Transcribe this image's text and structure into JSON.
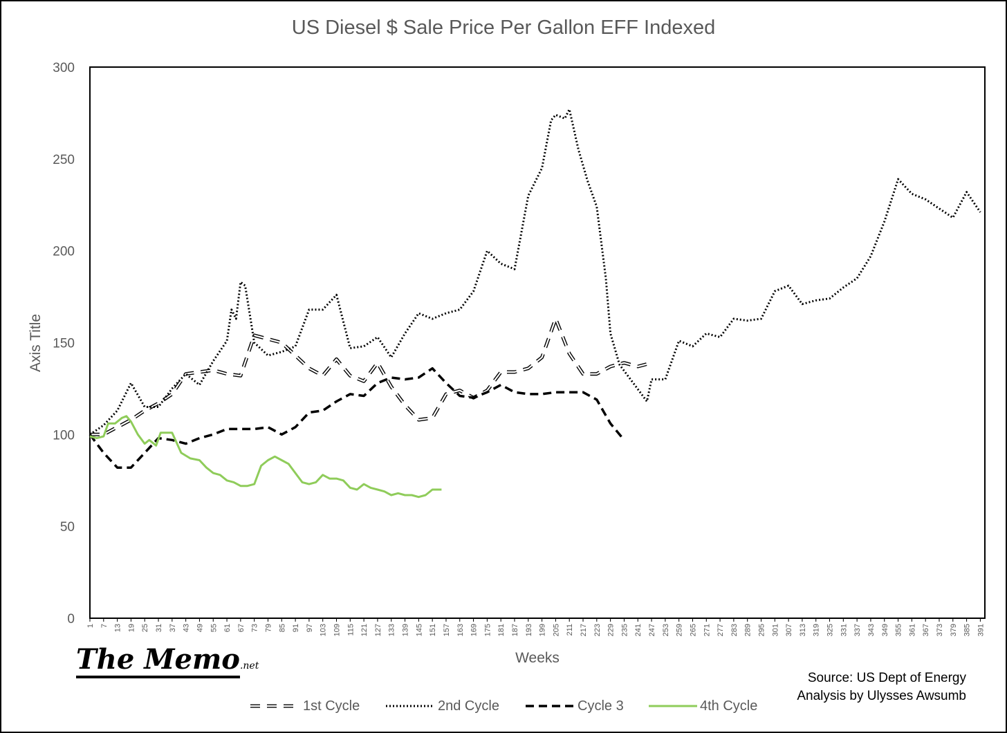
{
  "chart_data": {
    "type": "line",
    "title": "US Diesel $ Sale Price Per Gallon EFF Indexed",
    "xlabel": "Weeks",
    "ylabel": "Axis Title",
    "ylim": [
      0,
      300
    ],
    "yticks": [
      0,
      50,
      100,
      150,
      200,
      250,
      300
    ],
    "xlim": [
      1,
      393
    ],
    "xtick_start": 1,
    "xtick_step": 6,
    "xtick_end": 391,
    "legend_position": "bottom",
    "grid": false,
    "series": [
      {
        "name": "1st Cycle",
        "style": "long-dash-outline",
        "color": "#000000",
        "points": [
          [
            1,
            100
          ],
          [
            7,
            100
          ],
          [
            13,
            104
          ],
          [
            19,
            108
          ],
          [
            25,
            113
          ],
          [
            31,
            117
          ],
          [
            37,
            122
          ],
          [
            43,
            133
          ],
          [
            49,
            134
          ],
          [
            55,
            135
          ],
          [
            61,
            133
          ],
          [
            67,
            132
          ],
          [
            73,
            154
          ],
          [
            79,
            152
          ],
          [
            85,
            150
          ],
          [
            91,
            143
          ],
          [
            97,
            136
          ],
          [
            103,
            132
          ],
          [
            109,
            141
          ],
          [
            115,
            132
          ],
          [
            121,
            129
          ],
          [
            127,
            139
          ],
          [
            133,
            126
          ],
          [
            139,
            116
          ],
          [
            145,
            108
          ],
          [
            151,
            109
          ],
          [
            157,
            122
          ],
          [
            163,
            124
          ],
          [
            169,
            120
          ],
          [
            175,
            124
          ],
          [
            181,
            134
          ],
          [
            187,
            134
          ],
          [
            193,
            136
          ],
          [
            199,
            142
          ],
          [
            205,
            163
          ],
          [
            211,
            144
          ],
          [
            217,
            133
          ],
          [
            223,
            133
          ],
          [
            229,
            137
          ],
          [
            235,
            139
          ],
          [
            241,
            137
          ],
          [
            247,
            139
          ]
        ]
      },
      {
        "name": "2nd Cycle",
        "style": "dotted",
        "color": "#000000",
        "points": [
          [
            1,
            100
          ],
          [
            7,
            105
          ],
          [
            13,
            113
          ],
          [
            19,
            128
          ],
          [
            25,
            115
          ],
          [
            31,
            115
          ],
          [
            37,
            125
          ],
          [
            43,
            133
          ],
          [
            49,
            127
          ],
          [
            55,
            140
          ],
          [
            61,
            151
          ],
          [
            63,
            168
          ],
          [
            65,
            163
          ],
          [
            67,
            183
          ],
          [
            69,
            181
          ],
          [
            73,
            150
          ],
          [
            79,
            143
          ],
          [
            85,
            145
          ],
          [
            91,
            148
          ],
          [
            97,
            168
          ],
          [
            103,
            168
          ],
          [
            109,
            176
          ],
          [
            115,
            147
          ],
          [
            121,
            148
          ],
          [
            127,
            153
          ],
          [
            133,
            142
          ],
          [
            139,
            155
          ],
          [
            145,
            166
          ],
          [
            151,
            163
          ],
          [
            157,
            166
          ],
          [
            163,
            168
          ],
          [
            169,
            178
          ],
          [
            175,
            200
          ],
          [
            181,
            193
          ],
          [
            187,
            190
          ],
          [
            193,
            230
          ],
          [
            199,
            245
          ],
          [
            203,
            271
          ],
          [
            205,
            274
          ],
          [
            209,
            272
          ],
          [
            211,
            277
          ],
          [
            215,
            255
          ],
          [
            219,
            238
          ],
          [
            223,
            224
          ],
          [
            227,
            185
          ],
          [
            229,
            155
          ],
          [
            233,
            138
          ],
          [
            239,
            128
          ],
          [
            245,
            118
          ],
          [
            247,
            130
          ],
          [
            253,
            130
          ],
          [
            259,
            151
          ],
          [
            265,
            148
          ],
          [
            271,
            155
          ],
          [
            277,
            153
          ],
          [
            283,
            163
          ],
          [
            289,
            162
          ],
          [
            295,
            163
          ],
          [
            301,
            178
          ],
          [
            307,
            181
          ],
          [
            313,
            171
          ],
          [
            319,
            173
          ],
          [
            325,
            174
          ],
          [
            331,
            180
          ],
          [
            337,
            185
          ],
          [
            343,
            197
          ],
          [
            349,
            216
          ],
          [
            355,
            239
          ],
          [
            361,
            231
          ],
          [
            367,
            228
          ],
          [
            373,
            223
          ],
          [
            379,
            218
          ],
          [
            385,
            232
          ],
          [
            391,
            221
          ]
        ]
      },
      {
        "name": "Cycle 3",
        "style": "dashed",
        "color": "#000000",
        "points": [
          [
            1,
            100
          ],
          [
            7,
            90
          ],
          [
            13,
            82
          ],
          [
            19,
            82
          ],
          [
            25,
            90
          ],
          [
            31,
            98
          ],
          [
            37,
            97
          ],
          [
            43,
            95
          ],
          [
            49,
            98
          ],
          [
            55,
            100
          ],
          [
            61,
            103
          ],
          [
            67,
            103
          ],
          [
            73,
            103
          ],
          [
            79,
            104
          ],
          [
            85,
            100
          ],
          [
            91,
            104
          ],
          [
            97,
            112
          ],
          [
            103,
            113
          ],
          [
            109,
            118
          ],
          [
            115,
            122
          ],
          [
            121,
            121
          ],
          [
            127,
            128
          ],
          [
            133,
            131
          ],
          [
            139,
            130
          ],
          [
            145,
            131
          ],
          [
            151,
            136
          ],
          [
            157,
            128
          ],
          [
            163,
            121
          ],
          [
            169,
            120
          ],
          [
            175,
            123
          ],
          [
            181,
            127
          ],
          [
            187,
            123
          ],
          [
            193,
            122
          ],
          [
            199,
            122
          ],
          [
            205,
            123
          ],
          [
            211,
            123
          ],
          [
            217,
            123
          ],
          [
            223,
            119
          ],
          [
            229,
            106
          ],
          [
            235,
            97
          ]
        ]
      },
      {
        "name": "4th Cycle",
        "style": "solid",
        "color": "#8fcc5a",
        "points": [
          [
            1,
            99
          ],
          [
            4,
            98
          ],
          [
            7,
            99
          ],
          [
            9,
            106
          ],
          [
            12,
            106
          ],
          [
            15,
            109
          ],
          [
            17,
            110
          ],
          [
            19,
            107
          ],
          [
            22,
            100
          ],
          [
            25,
            95
          ],
          [
            27,
            97
          ],
          [
            30,
            94
          ],
          [
            32,
            101
          ],
          [
            37,
            101
          ],
          [
            41,
            90
          ],
          [
            45,
            87
          ],
          [
            49,
            86
          ],
          [
            52,
            82
          ],
          [
            55,
            79
          ],
          [
            58,
            78
          ],
          [
            61,
            75
          ],
          [
            64,
            74
          ],
          [
            67,
            72
          ],
          [
            70,
            72
          ],
          [
            73,
            73
          ],
          [
            76,
            83
          ],
          [
            79,
            86
          ],
          [
            82,
            88
          ],
          [
            85,
            86
          ],
          [
            88,
            84
          ],
          [
            91,
            79
          ],
          [
            94,
            74
          ],
          [
            97,
            73
          ],
          [
            100,
            74
          ],
          [
            103,
            78
          ],
          [
            106,
            76
          ],
          [
            109,
            76
          ],
          [
            112,
            75
          ],
          [
            115,
            71
          ],
          [
            118,
            70
          ],
          [
            121,
            73
          ],
          [
            124,
            71
          ],
          [
            127,
            70
          ],
          [
            130,
            69
          ],
          [
            133,
            67
          ],
          [
            136,
            68
          ],
          [
            139,
            67
          ],
          [
            142,
            67
          ],
          [
            145,
            66
          ],
          [
            148,
            67
          ],
          [
            151,
            70
          ],
          [
            155,
            70
          ]
        ]
      }
    ]
  },
  "branding": {
    "logo_text": "The Memo",
    "logo_suffix": ".net"
  },
  "source": {
    "line1": "Source: US Dept of Energy",
    "line2": "Analysis by Ulysses Awsumb"
  },
  "legend": [
    {
      "label": "1st Cycle"
    },
    {
      "label": "2nd Cycle"
    },
    {
      "label": "Cycle 3"
    },
    {
      "label": "4th Cycle"
    }
  ]
}
